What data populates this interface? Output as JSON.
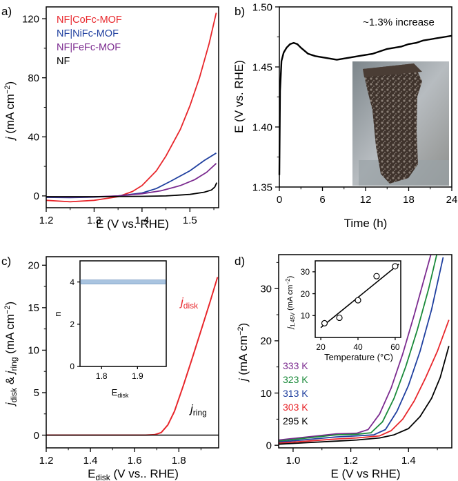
{
  "chart_data": [
    {
      "panel": "a)",
      "type": "line",
      "xlabel": "E (V vs. RHE)",
      "ylabel_main": "j",
      "ylabel_unit": " (mA cm",
      "ylabel_exp": "−2",
      "ylabel_close": ")",
      "xlim": [
        1.2,
        1.56
      ],
      "ylim": [
        -8,
        128
      ],
      "xticks": [
        "1.2",
        "1.3",
        "1.4",
        "1.5"
      ],
      "xtick_values": [
        1.2,
        1.3,
        1.4,
        1.5
      ],
      "yticks": [
        "0",
        "40",
        "80",
        "120"
      ],
      "ytick_values": [
        0,
        40,
        80,
        120
      ],
      "legend": "top-left",
      "series": [
        {
          "name": "NF|CoFc-MOF",
          "color": "#e8262b",
          "x": [
            1.2,
            1.25,
            1.3,
            1.35,
            1.38,
            1.4,
            1.43,
            1.45,
            1.48,
            1.5,
            1.52,
            1.54,
            1.555
          ],
          "y": [
            -3,
            -4,
            -3,
            -0.5,
            3,
            7,
            17,
            27,
            45,
            61,
            80,
            103,
            124
          ]
        },
        {
          "name": "NF|NiFc-MOF",
          "color": "#1f3f9f",
          "x": [
            1.2,
            1.25,
            1.3,
            1.35,
            1.4,
            1.43,
            1.46,
            1.5,
            1.53,
            1.555
          ],
          "y": [
            -1,
            -1.2,
            -0.8,
            0,
            2,
            5,
            10,
            17,
            24,
            29
          ]
        },
        {
          "name": "NF|FeFc-MOF",
          "color": "#7b2a8f",
          "x": [
            1.2,
            1.25,
            1.3,
            1.35,
            1.4,
            1.44,
            1.48,
            1.51,
            1.535,
            1.555
          ],
          "y": [
            -0.6,
            -0.8,
            -0.6,
            0,
            1.5,
            3.5,
            7,
            11,
            16,
            22
          ]
        },
        {
          "name": "NF",
          "color": "#000000",
          "x": [
            1.2,
            1.3,
            1.4,
            1.45,
            1.5,
            1.53,
            1.545,
            1.552,
            1.556
          ],
          "y": [
            -0.5,
            -0.5,
            -0.3,
            0,
            1,
            2.5,
            4,
            6,
            9
          ]
        }
      ]
    },
    {
      "panel": "b)",
      "type": "line",
      "xlabel": "Time (h)",
      "ylabel": "E (V vs. RHE)",
      "xlim": [
        0,
        24
      ],
      "ylim": [
        1.35,
        1.5
      ],
      "xticks": [
        "0",
        "6",
        "12",
        "18",
        "24"
      ],
      "xtick_values": [
        0,
        6,
        12,
        18,
        24
      ],
      "yticks": [
        "1.35",
        "1.40",
        "1.45",
        "1.50"
      ],
      "ytick_values": [
        1.35,
        1.4,
        1.45,
        1.5
      ],
      "annotation": "~1.3% increase",
      "inset_photo": "electrode photograph (bubbling)",
      "series": [
        {
          "name": "E vs t",
          "color": "#000000",
          "x": [
            0,
            0.1,
            0.3,
            0.6,
            1,
            1.5,
            2,
            2.5,
            3,
            4,
            5,
            6,
            7,
            8,
            9,
            10,
            11,
            12,
            13,
            14,
            15,
            16,
            17,
            18,
            19,
            20,
            21,
            22,
            23,
            24
          ],
          "y": [
            1.36,
            1.43,
            1.455,
            1.462,
            1.466,
            1.469,
            1.47,
            1.469,
            1.466,
            1.461,
            1.459,
            1.458,
            1.457,
            1.456,
            1.457,
            1.458,
            1.459,
            1.46,
            1.461,
            1.463,
            1.465,
            1.466,
            1.467,
            1.469,
            1.47,
            1.472,
            1.473,
            1.474,
            1.475,
            1.476
          ]
        }
      ]
    },
    {
      "panel": "c)",
      "type": "line",
      "xlabel_main": "E",
      "xlabel_sub": "disk",
      "xlabel_rest": " (V vs.. RHE)",
      "ylabel_j1": "j",
      "ylabel_sub1": "disk",
      "ylabel_amp": " & ",
      "ylabel_j2": "j",
      "ylabel_sub2": "ring",
      "ylabel_unit": " (mA cm",
      "ylabel_exp": "−2",
      "ylabel_close": ")",
      "xlim": [
        1.2,
        1.98
      ],
      "ylim": [
        -1.5,
        21
      ],
      "xticks": [
        "1.2",
        "1.4",
        "1.6",
        "1.8"
      ],
      "xtick_values": [
        1.2,
        1.4,
        1.6,
        1.8
      ],
      "yticks": [
        "0",
        "5",
        "10",
        "15",
        "20"
      ],
      "ytick_values": [
        0,
        5,
        10,
        15,
        20
      ],
      "label_disk_main": "j",
      "label_disk_sub": "disk",
      "label_ring_main": "j",
      "label_ring_sub": "ring",
      "series": [
        {
          "name": "j_disk",
          "color": "#e8262b",
          "x": [
            1.2,
            1.65,
            1.69,
            1.72,
            1.75,
            1.78,
            1.82,
            1.86,
            1.9,
            1.94,
            1.975
          ],
          "y": [
            0,
            0,
            0.05,
            0.3,
            1.2,
            2.8,
            5.8,
            9,
            12.3,
            15.6,
            18.6
          ]
        },
        {
          "name": "j_ring",
          "color": "#000000",
          "x": [
            1.2,
            1.98
          ],
          "y": [
            0,
            0
          ]
        }
      ],
      "inset": {
        "xlabel_main": "E",
        "xlabel_sub": "disk",
        "ylabel": "n",
        "xlim": [
          1.74,
          1.98
        ],
        "ylim": [
          0,
          5
        ],
        "xticks": [
          "1.8",
          "1.9"
        ],
        "xtick_values": [
          1.8,
          1.9
        ],
        "yticks": [
          "0",
          "2",
          "4"
        ],
        "ytick_values": [
          0,
          2,
          4
        ],
        "n_value": 4,
        "color": "#a9c4e0"
      }
    },
    {
      "panel": "d)",
      "type": "line",
      "xlabel": "E (V vs RHE)",
      "ylabel_main": "j",
      "ylabel_unit": " (mA cm",
      "ylabel_exp": "−2",
      "ylabel_close": ")",
      "xlim": [
        0.95,
        1.55
      ],
      "ylim": [
        -0.5,
        36.5
      ],
      "xticks": [
        "1.0",
        "1.2",
        "1.4"
      ],
      "xtick_values": [
        1.0,
        1.2,
        1.4
      ],
      "yticks": [
        "0",
        "10",
        "20",
        "30"
      ],
      "ytick_values": [
        0,
        10,
        20,
        30
      ],
      "legend": "bottom-left",
      "series": [
        {
          "name": "333 K",
          "color": "#7b2a8f",
          "x": [
            0.95,
            1.05,
            1.15,
            1.22,
            1.26,
            1.3,
            1.34,
            1.38,
            1.42,
            1.46,
            1.48
          ],
          "y": [
            1.0,
            1.6,
            2.2,
            2.3,
            3.0,
            6.0,
            11,
            17.5,
            25,
            33,
            37
          ]
        },
        {
          "name": "323 K",
          "color": "#1a8a3a",
          "x": [
            0.95,
            1.05,
            1.15,
            1.22,
            1.27,
            1.31,
            1.35,
            1.39,
            1.43,
            1.47,
            1.5
          ],
          "y": [
            0.8,
            1.4,
            2.0,
            2.1,
            2.4,
            4.5,
            9,
            15,
            22,
            30,
            37
          ]
        },
        {
          "name": "313 K",
          "color": "#1f3f9f",
          "x": [
            0.95,
            1.05,
            1.15,
            1.22,
            1.28,
            1.32,
            1.36,
            1.4,
            1.44,
            1.48,
            1.52
          ],
          "y": [
            0.6,
            1.1,
            1.6,
            1.8,
            2.0,
            3.0,
            6.5,
            11.5,
            18,
            26,
            36
          ]
        },
        {
          "name": "303 K",
          "color": "#e8262b",
          "x": [
            0.95,
            1.05,
            1.15,
            1.22,
            1.3,
            1.34,
            1.38,
            1.42,
            1.46,
            1.5,
            1.54
          ],
          "y": [
            0.4,
            0.8,
            1.2,
            1.4,
            1.8,
            2.8,
            5.0,
            8.5,
            13,
            18,
            24
          ]
        },
        {
          "name": "295 K",
          "color": "#000000",
          "x": [
            0.95,
            1.05,
            1.15,
            1.22,
            1.3,
            1.35,
            1.4,
            1.44,
            1.48,
            1.51,
            1.54
          ],
          "y": [
            0.2,
            0.5,
            0.8,
            1.0,
            1.4,
            2.0,
            3.2,
            5.5,
            9,
            13,
            19
          ]
        }
      ],
      "inset": {
        "xlabel": "Temperature (°C)",
        "ylabel_main": "j",
        "ylabel_sub": "1.45V",
        "ylabel_unit": " (mA cm",
        "ylabel_exp": "−2",
        "ylabel_close": ")",
        "xlim": [
          17,
          63
        ],
        "ylim": [
          0,
          35
        ],
        "xticks": [
          "20",
          "40",
          "60"
        ],
        "xtick_values": [
          20,
          40,
          60
        ],
        "yticks": [
          "10",
          "20",
          "30"
        ],
        "ytick_values": [
          10,
          20,
          30
        ],
        "points_x": [
          22,
          30,
          40,
          50,
          60
        ],
        "points_y": [
          6.5,
          9,
          17,
          28,
          32.5
        ],
        "fit_x": [
          20,
          62
        ],
        "fit_y": [
          4.5,
          33.5
        ]
      }
    }
  ]
}
